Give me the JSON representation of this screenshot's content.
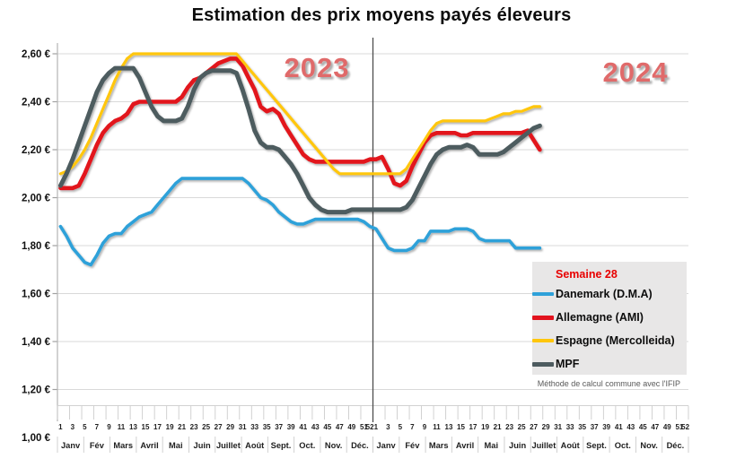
{
  "chart_data": {
    "type": "line",
    "title": "Estimation des prix moyens payés éleveurs",
    "xlabel": "",
    "ylabel": "",
    "ylim": [
      1.0,
      2.6
    ],
    "grid": true,
    "legend_position": "right-bottom-box",
    "x_axis": {
      "years": [
        "2023",
        "2024"
      ],
      "week_labels": [
        "1",
        "3",
        "5",
        "7",
        "9",
        "11",
        "13",
        "15",
        "17",
        "19",
        "21",
        "23",
        "25",
        "27",
        "29",
        "31",
        "33",
        "35",
        "37",
        "39",
        "41",
        "43",
        "45",
        "47",
        "49",
        "51",
        "52"
      ],
      "months": [
        "Janv",
        "Fév",
        "Mars",
        "Avril",
        "Mai",
        "Juin",
        "Juillet",
        "Août",
        "Sept.",
        "Oct.",
        "Nov.",
        "Déc."
      ],
      "year_separator_between": "week 52 of 2023 and week 1 of 2024"
    },
    "y_axis": {
      "tick_labels": [
        "2,60 €",
        "2,40 €",
        "2,20 €",
        "2,00 €",
        "1,80 €",
        "1,60 €",
        "1,40 €",
        "1,20 €",
        "1,00 €"
      ],
      "tick_values": [
        2.6,
        2.4,
        2.2,
        2.0,
        1.8,
        1.6,
        1.4,
        1.2,
        1.0
      ],
      "min": 1.0,
      "max": 2.6,
      "step": 0.2
    },
    "series": [
      {
        "name": "Danemark (D.M.A)",
        "color": "#2fa1d9",
        "values_2023": [
          1.88,
          1.84,
          1.79,
          1.76,
          1.73,
          1.72,
          1.76,
          1.81,
          1.84,
          1.85,
          1.85,
          1.88,
          1.9,
          1.92,
          1.93,
          1.94,
          1.97,
          2.0,
          2.03,
          2.06,
          2.08,
          2.08,
          2.08,
          2.08,
          2.08,
          2.08,
          2.08,
          2.08,
          2.08,
          2.08,
          2.08,
          2.06,
          2.03,
          2.0,
          1.99,
          1.97,
          1.94,
          1.92,
          1.9,
          1.89,
          1.89,
          1.9,
          1.91,
          1.91,
          1.91,
          1.91,
          1.91,
          1.91,
          1.91,
          1.91,
          1.9,
          1.88
        ],
        "values_2024": [
          1.87,
          1.83,
          1.79,
          1.78,
          1.78,
          1.78,
          1.79,
          1.82,
          1.82,
          1.86,
          1.86,
          1.86,
          1.86,
          1.87,
          1.87,
          1.87,
          1.86,
          1.83,
          1.82,
          1.82,
          1.82,
          1.82,
          1.82,
          1.79,
          1.79,
          1.79,
          1.79,
          1.79
        ]
      },
      {
        "name": "Allemagne (AMI)",
        "color": "#e2131e",
        "values_2023": [
          2.04,
          2.04,
          2.04,
          2.05,
          2.1,
          2.16,
          2.22,
          2.27,
          2.3,
          2.32,
          2.33,
          2.35,
          2.39,
          2.4,
          2.4,
          2.4,
          2.4,
          2.4,
          2.4,
          2.4,
          2.42,
          2.46,
          2.49,
          2.5,
          2.52,
          2.54,
          2.56,
          2.57,
          2.58,
          2.58,
          2.55,
          2.5,
          2.45,
          2.38,
          2.36,
          2.37,
          2.35,
          2.3,
          2.26,
          2.22,
          2.18,
          2.16,
          2.15,
          2.15,
          2.15,
          2.15,
          2.15,
          2.15,
          2.15,
          2.15,
          2.15,
          2.16
        ],
        "values_2024": [
          2.16,
          2.17,
          2.12,
          2.06,
          2.05,
          2.07,
          2.13,
          2.18,
          2.23,
          2.26,
          2.27,
          2.27,
          2.27,
          2.27,
          2.26,
          2.26,
          2.27,
          2.27,
          2.27,
          2.27,
          2.27,
          2.27,
          2.27,
          2.27,
          2.27,
          2.28,
          2.24,
          2.2
        ]
      },
      {
        "name": "Espagne (Mercolleida)",
        "color": "#ffc60b",
        "values_2023": [
          2.1,
          2.11,
          2.13,
          2.16,
          2.2,
          2.25,
          2.31,
          2.37,
          2.43,
          2.49,
          2.54,
          2.58,
          2.6,
          2.6,
          2.6,
          2.6,
          2.6,
          2.6,
          2.6,
          2.6,
          2.6,
          2.6,
          2.6,
          2.6,
          2.6,
          2.6,
          2.6,
          2.6,
          2.6,
          2.6,
          2.57,
          2.54,
          2.51,
          2.48,
          2.45,
          2.42,
          2.39,
          2.36,
          2.33,
          2.3,
          2.27,
          2.24,
          2.21,
          2.18,
          2.15,
          2.12,
          2.1,
          2.1,
          2.1,
          2.1,
          2.1,
          2.1
        ],
        "values_2024": [
          2.1,
          2.1,
          2.1,
          2.1,
          2.1,
          2.12,
          2.16,
          2.2,
          2.24,
          2.28,
          2.31,
          2.32,
          2.32,
          2.32,
          2.32,
          2.32,
          2.32,
          2.32,
          2.32,
          2.33,
          2.34,
          2.35,
          2.35,
          2.36,
          2.36,
          2.37,
          2.38,
          2.38
        ]
      },
      {
        "name": "MPF",
        "color": "#4d5b5f",
        "values_2023": [
          2.05,
          2.1,
          2.16,
          2.23,
          2.3,
          2.37,
          2.44,
          2.49,
          2.52,
          2.54,
          2.54,
          2.54,
          2.54,
          2.5,
          2.44,
          2.38,
          2.34,
          2.32,
          2.32,
          2.32,
          2.33,
          2.38,
          2.45,
          2.5,
          2.52,
          2.53,
          2.53,
          2.53,
          2.53,
          2.52,
          2.45,
          2.37,
          2.28,
          2.23,
          2.21,
          2.21,
          2.2,
          2.17,
          2.14,
          2.1,
          2.05,
          2.0,
          1.97,
          1.95,
          1.94,
          1.94,
          1.94,
          1.94,
          1.95,
          1.95,
          1.95,
          1.95
        ],
        "values_2024": [
          1.95,
          1.95,
          1.95,
          1.95,
          1.95,
          1.96,
          1.99,
          2.04,
          2.09,
          2.14,
          2.18,
          2.2,
          2.21,
          2.21,
          2.21,
          2.22,
          2.21,
          2.18,
          2.18,
          2.18,
          2.18,
          2.19,
          2.21,
          2.23,
          2.25,
          2.27,
          2.29,
          2.3
        ]
      }
    ]
  },
  "legend": {
    "header": "Semaine 28",
    "items": [
      {
        "label": "Danemark (D.M.A)"
      },
      {
        "label": "Allemagne (AMI)"
      },
      {
        "label": "Espagne (Mercolleida)"
      },
      {
        "label": "MPF"
      }
    ]
  },
  "footnote": "Méthode de calcul commune avec l'IFIP",
  "colors": {
    "danemark": "#2fa1d9",
    "allemagne": "#e2131e",
    "espagne": "#ffc60b",
    "mpf": "#4d5b5f",
    "year_label": "#e06a6a",
    "legend_header": "#e80000",
    "legend_background": "#e8e7e7",
    "gridline": "#d9d9d9"
  }
}
